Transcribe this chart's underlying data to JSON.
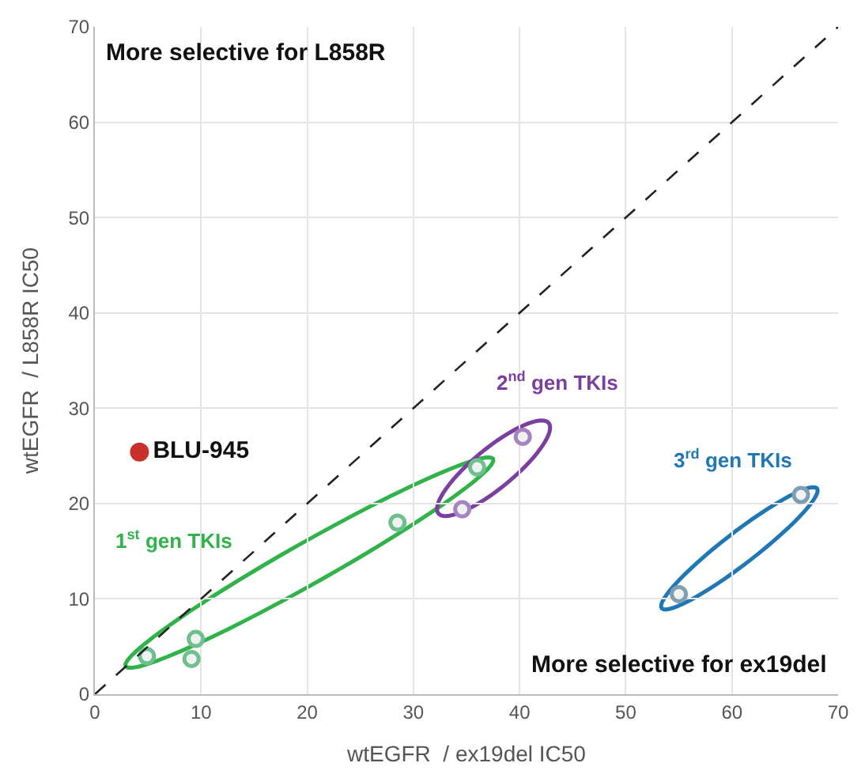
{
  "chart_data": {
    "type": "scatter",
    "xlabel": "wtEGFR  / ex19del IC50",
    "ylabel": "wtEGFR  / L858R IC50",
    "xlim": [
      0,
      70
    ],
    "ylim": [
      0,
      70
    ],
    "xticks": [
      0,
      10,
      20,
      30,
      40,
      50,
      60,
      70
    ],
    "yticks": [
      0,
      10,
      20,
      30,
      40,
      50,
      60,
      70
    ],
    "grid": true,
    "legend": false,
    "marker": "circle",
    "series": [
      {
        "color": "#6fbf8f",
        "x": [
          4.9,
          9.1,
          9.5,
          28.5,
          36.0
        ],
        "values": [
          4.0,
          3.7,
          5.8,
          18.0,
          23.8
        ]
      },
      {
        "color": "#a585c0",
        "x": [
          34.6,
          40.3
        ],
        "values": [
          19.4,
          27.0
        ]
      },
      {
        "color": "#7f9fb2",
        "x": [
          55.0,
          66.5
        ],
        "values": [
          10.5,
          20.9
        ]
      },
      {
        "name": "BLU-945",
        "color": "#c8302c",
        "x": [
          4.2
        ],
        "values": [
          25.4
        ]
      },
      {
        "type": "line",
        "color": "#222222",
        "line_style": "dashed",
        "marker": "none",
        "x": [
          0,
          70
        ],
        "values": [
          0,
          70
        ]
      }
    ],
    "annotations": [
      "More selective for L858R",
      "More selective for ex19del",
      "1$^{st}$ gen TKIs",
      "2$^{nd}$ gen TKIs",
      "3$^{rd}$ gen TKIs"
    ]
  }
}
